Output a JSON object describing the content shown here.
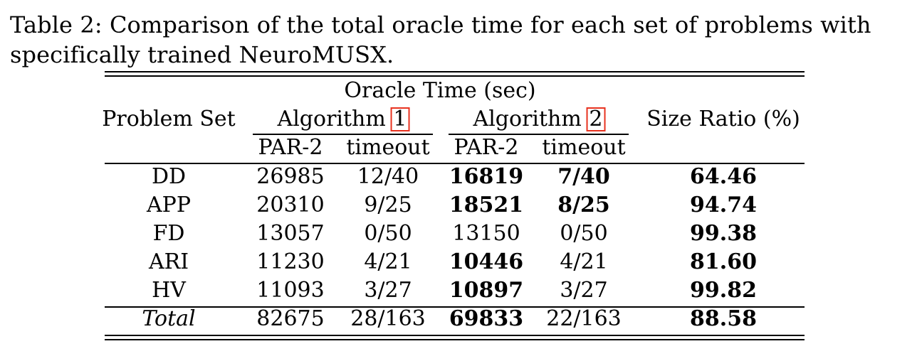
{
  "caption": {
    "line1": "Table 2: Comparison of the total oracle time for each set of problems with",
    "line2": "specifically trained NeuroMUSX."
  },
  "table": {
    "header": {
      "group": "Oracle Time (sec)",
      "problem_set": "Problem Set",
      "alg1_prefix": "Algorithm ",
      "alg1_ref": "1",
      "alg2_prefix": "Algorithm ",
      "alg2_ref": "2",
      "size_ratio": "Size Ratio (%)",
      "par2_1": "PAR-2",
      "timeout_1": "timeout",
      "par2_2": "PAR-2",
      "timeout_2": "timeout"
    },
    "rows": [
      {
        "set": "DD",
        "a1_par2": "26985",
        "a1_timeout": "12/40",
        "a2_par2": "16819",
        "a2_timeout": "7/40",
        "ratio": "64.46"
      },
      {
        "set": "APP",
        "a1_par2": "20310",
        "a1_timeout": "9/25",
        "a2_par2": "18521",
        "a2_timeout": "8/25",
        "ratio": "94.74"
      },
      {
        "set": "FD",
        "a1_par2": "13057",
        "a1_timeout": "0/50",
        "a2_par2": "13150",
        "a2_timeout": "0/50",
        "ratio": "99.38"
      },
      {
        "set": "ARI",
        "a1_par2": "11230",
        "a1_timeout": "4/21",
        "a2_par2": "10446",
        "a2_timeout": "4/21",
        "ratio": "81.60"
      },
      {
        "set": "HV",
        "a1_par2": "11093",
        "a1_timeout": "3/27",
        "a2_par2": "10897",
        "a2_timeout": "3/27",
        "ratio": "99.82"
      }
    ],
    "total": {
      "set": "Total",
      "a1_par2": "82675",
      "a1_timeout": "28/163",
      "a2_par2": "69833",
      "a2_timeout": "22/163",
      "ratio": "88.58"
    },
    "highlight_color": "#e8321f"
  }
}
